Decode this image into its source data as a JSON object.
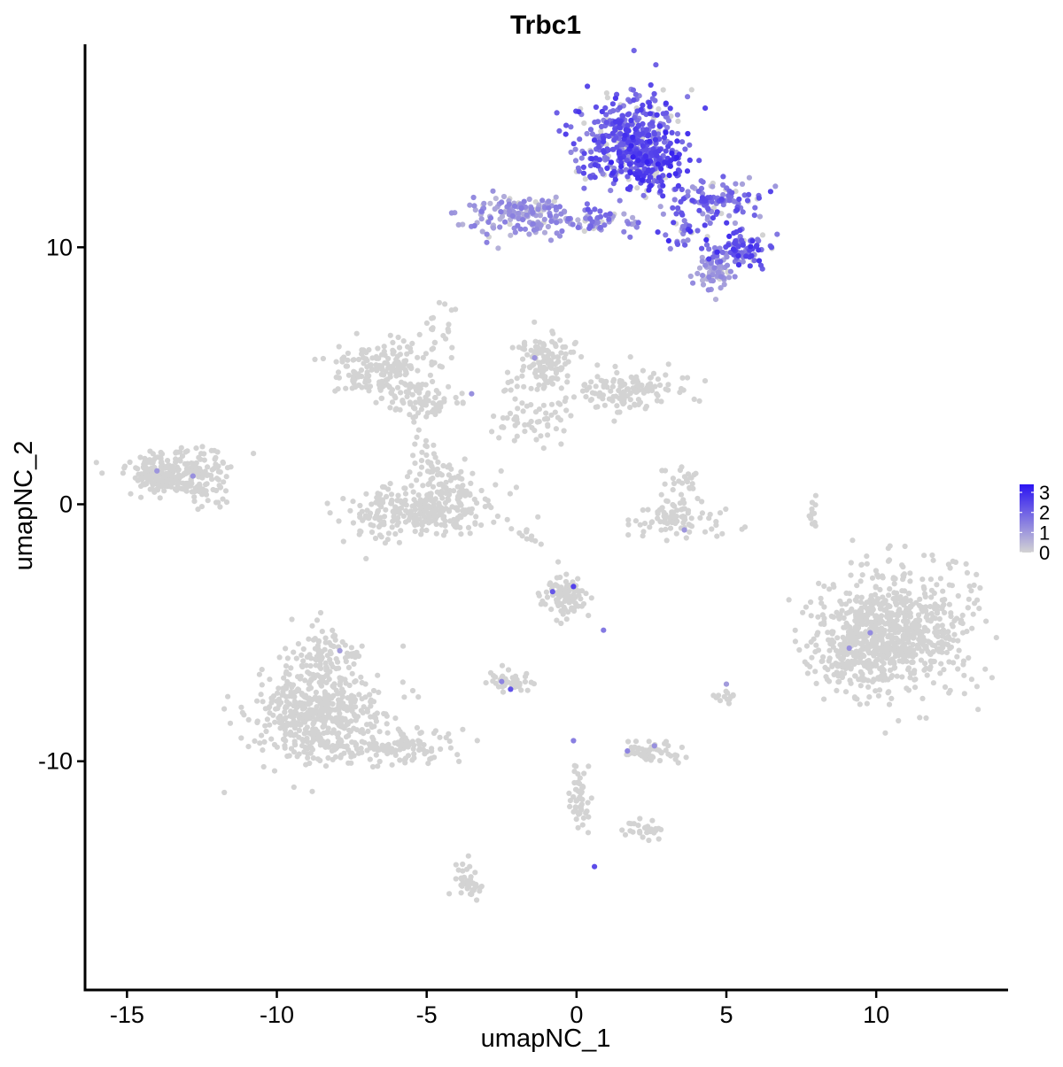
{
  "chart_data": {
    "type": "scatter",
    "title": "Trbc1",
    "xlabel": "umapNC_1",
    "ylabel": "umapNC_2",
    "xlim": [
      -16.4,
      14.4
    ],
    "ylim": [
      -18.9,
      17.9
    ],
    "x_ticks": [
      {
        "value": -15,
        "label": "-15"
      },
      {
        "value": -10,
        "label": "-10"
      },
      {
        "value": -5,
        "label": "-5"
      },
      {
        "value": 0,
        "label": "0"
      },
      {
        "value": 5,
        "label": "5"
      },
      {
        "value": 10,
        "label": "10"
      }
    ],
    "y_ticks": [
      {
        "value": -10,
        "label": "-10"
      },
      {
        "value": 0,
        "label": "0"
      },
      {
        "value": 10,
        "label": "10"
      }
    ],
    "grid": false,
    "legend": {
      "placement": "right",
      "type": "colorbar",
      "range": [
        0,
        3.4
      ],
      "ticks": [
        {
          "value": 0,
          "label": "0"
        },
        {
          "value": 1,
          "label": "1"
        },
        {
          "value": 2,
          "label": "2"
        },
        {
          "value": 3,
          "label": "3"
        }
      ]
    },
    "colors": {
      "low": "#d3d3d3",
      "high": "#2b14f2"
    },
    "cluster_regions": [
      {
        "cx": 1.8,
        "cy": 14.1,
        "sx": 0.85,
        "sy": 0.95,
        "n": 420,
        "expr": [
          1.2,
          2.8
        ]
      },
      {
        "cx": 2.4,
        "cy": 13.4,
        "sx": 0.55,
        "sy": 0.55,
        "n": 120,
        "expr": [
          2.0,
          3.2
        ]
      },
      {
        "cx": -1.8,
        "cy": 11.2,
        "sx": 0.9,
        "sy": 0.4,
        "n": 170,
        "expr": [
          0.5,
          1.6
        ]
      },
      {
        "cx": 0.8,
        "cy": 11.0,
        "sx": 0.7,
        "sy": 0.25,
        "n": 55,
        "expr": [
          0.6,
          2.0
        ]
      },
      {
        "cx": 4.5,
        "cy": 11.8,
        "sx": 0.8,
        "sy": 0.4,
        "n": 110,
        "expr": [
          0.8,
          2.6
        ]
      },
      {
        "cx": 5.4,
        "cy": 9.9,
        "sx": 0.5,
        "sy": 0.4,
        "n": 90,
        "expr": [
          1.2,
          3.0
        ]
      },
      {
        "cx": 4.6,
        "cy": 9.0,
        "sx": 0.35,
        "sy": 0.35,
        "n": 60,
        "expr": [
          0.6,
          1.4
        ]
      },
      {
        "cx": 3.7,
        "cy": 10.5,
        "sx": 0.5,
        "sy": 0.3,
        "n": 30,
        "expr": [
          1.0,
          3.0
        ]
      },
      {
        "cx": -13.5,
        "cy": 1.2,
        "sx": 0.8,
        "sy": 0.45,
        "n": 260,
        "expr": [
          0,
          0
        ]
      },
      {
        "cx": -12.4,
        "cy": 0.4,
        "sx": 0.3,
        "sy": 0.3,
        "n": 25,
        "expr": [
          0,
          0
        ]
      },
      {
        "cx": -12.2,
        "cy": 1.8,
        "sx": 0.25,
        "sy": 0.3,
        "n": 12,
        "expr": [
          0,
          0
        ]
      },
      {
        "cx": -6.4,
        "cy": 5.3,
        "sx": 0.9,
        "sy": 0.5,
        "n": 180,
        "expr": [
          0,
          0
        ]
      },
      {
        "cx": -5.1,
        "cy": 4.0,
        "sx": 0.6,
        "sy": 0.35,
        "n": 70,
        "expr": [
          0,
          0
        ]
      },
      {
        "cx": -4.6,
        "cy": 6.8,
        "sx": 0.25,
        "sy": 0.5,
        "n": 20,
        "expr": [
          0,
          0
        ]
      },
      {
        "cx": -5.0,
        "cy": 2.2,
        "sx": 0.2,
        "sy": 0.5,
        "n": 20,
        "expr": [
          0,
          0
        ]
      },
      {
        "cx": -5.2,
        "cy": -0.3,
        "sx": 1.2,
        "sy": 0.5,
        "n": 280,
        "expr": [
          0,
          0
        ]
      },
      {
        "cx": -4.4,
        "cy": 0.9,
        "sx": 0.6,
        "sy": 0.45,
        "n": 60,
        "expr": [
          0,
          0
        ]
      },
      {
        "cx": -1.1,
        "cy": 5.5,
        "sx": 0.5,
        "sy": 0.6,
        "n": 130,
        "expr": [
          0,
          0
        ]
      },
      {
        "cx": 1.7,
        "cy": 4.4,
        "sx": 0.9,
        "sy": 0.4,
        "n": 140,
        "expr": [
          0,
          0
        ]
      },
      {
        "cx": -1.5,
        "cy": 3.4,
        "sx": 0.7,
        "sy": 0.5,
        "n": 60,
        "expr": [
          0,
          0
        ]
      },
      {
        "cx": 3.4,
        "cy": -0.5,
        "sx": 0.8,
        "sy": 0.4,
        "n": 90,
        "expr": [
          0,
          0
        ]
      },
      {
        "cx": 3.6,
        "cy": 0.9,
        "sx": 0.25,
        "sy": 0.4,
        "n": 25,
        "expr": [
          0,
          0
        ]
      },
      {
        "cx": 10.6,
        "cy": -5.0,
        "sx": 1.3,
        "sy": 1.2,
        "n": 720,
        "expr": [
          0,
          0
        ]
      },
      {
        "cx": 9.2,
        "cy": -5.6,
        "sx": 0.7,
        "sy": 0.8,
        "n": 140,
        "expr": [
          0,
          0
        ]
      },
      {
        "cx": -8.6,
        "cy": -8.3,
        "sx": 1.0,
        "sy": 0.9,
        "n": 500,
        "expr": [
          0,
          0
        ]
      },
      {
        "cx": -8.4,
        "cy": -6.0,
        "sx": 0.5,
        "sy": 0.7,
        "n": 110,
        "expr": [
          0,
          0
        ]
      },
      {
        "cx": -5.9,
        "cy": -9.5,
        "sx": 1.1,
        "sy": 0.35,
        "n": 110,
        "expr": [
          0,
          0
        ]
      },
      {
        "cx": -0.4,
        "cy": -3.6,
        "sx": 0.4,
        "sy": 0.45,
        "n": 90,
        "expr": [
          0,
          0
        ]
      },
      {
        "cx": -2.2,
        "cy": -6.9,
        "sx": 0.35,
        "sy": 0.2,
        "n": 45,
        "expr": [
          0,
          0
        ]
      },
      {
        "cx": 2.6,
        "cy": -9.6,
        "sx": 0.5,
        "sy": 0.2,
        "n": 55,
        "expr": [
          0,
          0
        ]
      },
      {
        "cx": 0.1,
        "cy": -11.4,
        "sx": 0.2,
        "sy": 0.6,
        "n": 50,
        "expr": [
          0,
          0
        ]
      },
      {
        "cx": 2.3,
        "cy": -12.6,
        "sx": 0.3,
        "sy": 0.2,
        "n": 30,
        "expr": [
          0,
          0
        ]
      },
      {
        "cx": -3.6,
        "cy": -14.7,
        "sx": 0.2,
        "sy": 0.4,
        "n": 40,
        "expr": [
          0,
          0
        ]
      },
      {
        "cx": 5.0,
        "cy": -7.5,
        "sx": 0.2,
        "sy": 0.15,
        "n": 14,
        "expr": [
          0,
          0
        ]
      },
      {
        "cx": 7.9,
        "cy": -0.2,
        "sx": 0.1,
        "sy": 0.4,
        "n": 12,
        "expr": [
          0,
          0
        ]
      },
      {
        "cx": -1.5,
        "cy": -1.0,
        "sx": 0.4,
        "sy": 0.25,
        "n": 14,
        "expr": [
          0,
          0
        ]
      }
    ],
    "highlighted_points": [
      {
        "x": -0.8,
        "y": -3.4,
        "v": 2.2
      },
      {
        "x": -0.1,
        "y": -3.2,
        "v": 2.6
      },
      {
        "x": 0.9,
        "y": -4.9,
        "v": 1.6
      },
      {
        "x": -2.5,
        "y": -6.9,
        "v": 1.4
      },
      {
        "x": -2.2,
        "y": -7.2,
        "v": 2.3
      },
      {
        "x": 1.7,
        "y": -9.6,
        "v": 1.4
      },
      {
        "x": 2.6,
        "y": -9.4,
        "v": 1.2
      },
      {
        "x": 0.6,
        "y": -14.1,
        "v": 2.4
      },
      {
        "x": 9.8,
        "y": -5.0,
        "v": 1.3
      },
      {
        "x": 9.1,
        "y": -5.6,
        "v": 1.2
      },
      {
        "x": -14.0,
        "y": 1.3,
        "v": 1.1
      },
      {
        "x": -12.8,
        "y": 1.1,
        "v": 1.2
      },
      {
        "x": -3.5,
        "y": 4.3,
        "v": 1.2
      },
      {
        "x": -1.4,
        "y": 5.7,
        "v": 1.1
      },
      {
        "x": 3.6,
        "y": -1.0,
        "v": 1.1
      },
      {
        "x": -0.1,
        "y": -9.2,
        "v": 1.5
      },
      {
        "x": -7.9,
        "y": -5.7,
        "v": 1.0
      },
      {
        "x": 5.0,
        "y": -7.0,
        "v": 1.0
      }
    ]
  }
}
